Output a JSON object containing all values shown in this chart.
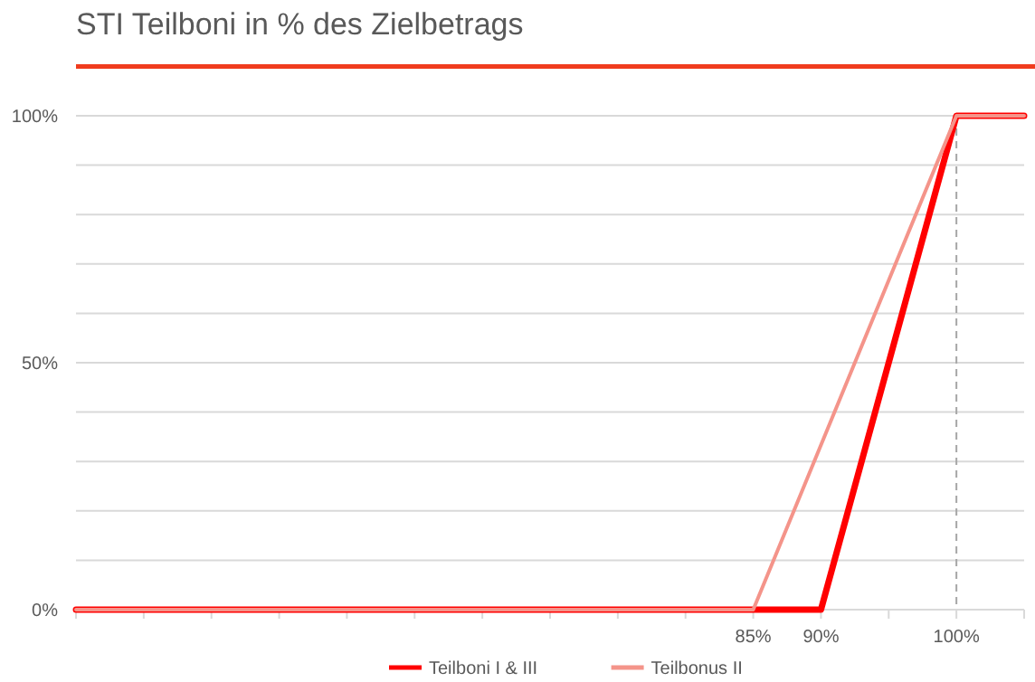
{
  "chart_data": {
    "type": "line",
    "title": "STI Teilboni in % des Zielbetrags",
    "xlim": [
      35,
      105
    ],
    "xticks": [
      {
        "value": 35,
        "label": null
      },
      {
        "value": 40,
        "label": null
      },
      {
        "value": 45,
        "label": null
      },
      {
        "value": 50,
        "label": null
      },
      {
        "value": 55,
        "label": null
      },
      {
        "value": 60,
        "label": null
      },
      {
        "value": 65,
        "label": null
      },
      {
        "value": 70,
        "label": null
      },
      {
        "value": 75,
        "label": null
      },
      {
        "value": 80,
        "label": null
      },
      {
        "value": 85,
        "label": "85%"
      },
      {
        "value": 90,
        "label": "90%"
      },
      {
        "value": 95,
        "label": null
      },
      {
        "value": 100,
        "label": "100%"
      },
      {
        "value": 105,
        "label": null
      }
    ],
    "ylim": [
      0,
      100
    ],
    "yticks": [
      {
        "value": 0,
        "label": "0%"
      },
      {
        "value": 10,
        "label": null
      },
      {
        "value": 20,
        "label": null
      },
      {
        "value": 30,
        "label": null
      },
      {
        "value": 40,
        "label": null
      },
      {
        "value": 50,
        "label": "50%"
      },
      {
        "value": 60,
        "label": null
      },
      {
        "value": 70,
        "label": null
      },
      {
        "value": 80,
        "label": null
      },
      {
        "value": 90,
        "label": null
      },
      {
        "value": 100,
        "label": "100%"
      }
    ],
    "series": [
      {
        "name": "Teilboni I & III",
        "color": "#ff0000",
        "x": [
          35,
          90,
          100,
          105
        ],
        "values": [
          0,
          0,
          100,
          100
        ]
      },
      {
        "name": "Teilbonus II",
        "color": "#f4948a",
        "x": [
          35,
          85,
          100,
          105
        ],
        "values": [
          0,
          0,
          100,
          100
        ]
      }
    ],
    "ref_lines": [
      {
        "axis": "x",
        "value": 100,
        "color": "#a6a6a6",
        "line_style": "dashed"
      }
    ],
    "grid": "y",
    "legend": "bottom",
    "marker": "none",
    "line_style": "solid"
  }
}
